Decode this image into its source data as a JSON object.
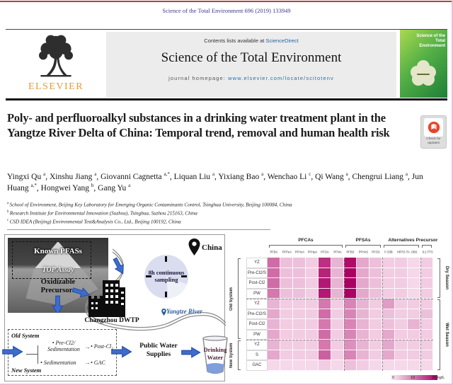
{
  "page": {
    "journal_ref": "Science of the Total Environment 696 (2019) 133949"
  },
  "header": {
    "contents_prefix": "Contents lists available at",
    "sciencedirect": "ScienceDirect",
    "journal_title": "Science of the Total Environment",
    "homepage_prefix": "journal homepage:",
    "homepage_url": "www.elsevier.com/locate/scitotenv",
    "elsevier_label": "ELSEVIER",
    "cover_title": "Science of the Total Environment",
    "check_updates_line1": "Check for",
    "check_updates_line2": "updates"
  },
  "article": {
    "title": "Poly- and perfluoroalkyl substances in a drinking water treatment plant in the Yangtze River Delta of China: Temporal trend, removal and human health risk",
    "authors": [
      {
        "name": "Yingxi Qu",
        "sup": "a"
      },
      {
        "name": "Xinshu Jiang",
        "sup": "a"
      },
      {
        "name": "Giovanni Cagnetta",
        "sup": "a,*"
      },
      {
        "name": "Liquan Liu",
        "sup": "a"
      },
      {
        "name": "Yixiang Bao",
        "sup": "a"
      },
      {
        "name": "Wenchao Li",
        "sup": "c"
      },
      {
        "name": "Qi Wang",
        "sup": "a"
      },
      {
        "name": "Chengrui Liang",
        "sup": "a"
      },
      {
        "name": "Jun Huang",
        "sup": "a,*"
      },
      {
        "name": "Hongwei Yang",
        "sup": "b"
      },
      {
        "name": "Gang Yu",
        "sup": "a"
      }
    ],
    "affiliations": [
      {
        "sup": "a",
        "text": "School of Environment, Beijing Key Laboratory for Emerging Organic Contaminants Control, Tsinghua University, Beijing 100084, China"
      },
      {
        "sup": "b",
        "text": "Research Institute for Environmental Innovation (Suzhou), Tsinghua, Suzhou 215163, China"
      },
      {
        "sup": "c",
        "text": "CSD IDEA (Beijing) Environmental Test&Analysis Co., Ltd., Beijing 100192, China"
      }
    ]
  },
  "graphical_abstract": {
    "iceberg_known": "Known PFASs",
    "iceberg_assay": "TOP Assay",
    "iceberg_oxidizable_1": "Oxidizable",
    "iceberg_oxidizable_2": "Precursors",
    "china": "China",
    "clock_line1": "8h continuous",
    "clock_line2": "sampling",
    "river": "Yangtze River",
    "plant": "Changzhou DWTP",
    "old_system": "Old System",
    "new_system": "New System",
    "step_pre_1": "• Pre-Cl2/",
    "step_pre_2": "Sedimentation",
    "step_post": "• Post-Cl₂",
    "step_sed": "• Sedimentation",
    "step_gac": "• GAC",
    "flow_arrow": "→",
    "public_water_1": "Public Water",
    "public_water_2": "Supplies",
    "drinking_1": "Drinking",
    "drinking_2": "Water"
  },
  "chart_data": {
    "type": "heatmap",
    "unit": "ng/L",
    "columns": [
      "PFBA",
      "PFPeA",
      "PFHxA",
      "PFHpA",
      "PFOA",
      "PFNA",
      "PFBS",
      "PFHxS",
      "PFOS",
      "F-53B",
      "HFPO-TA",
      "OBS",
      "6:2 FTS"
    ],
    "column_groups": [
      {
        "label": "PFCAs",
        "start": 0,
        "span": 6
      },
      {
        "label": "PFSAs",
        "start": 6,
        "span": 3
      },
      {
        "label": "Alternatives",
        "start": 9,
        "span": 3
      },
      {
        "label": "Precursor",
        "start": 12,
        "span": 1
      }
    ],
    "rows": [
      "YZ",
      "Pre-Cl2/S",
      "Post-Cl2",
      "PW",
      "YZ",
      "Pre-Cl2/S",
      "Post-Cl2",
      "PW",
      "YZ",
      "S",
      "GAC"
    ],
    "row_groups_left": [
      {
        "label": "Old System",
        "start": 0,
        "span": 8
      },
      {
        "label": "New System",
        "start": 8,
        "span": 3
      }
    ],
    "row_groups_right": [
      {
        "label": "Dry Season",
        "start": 0,
        "span": 4
      },
      {
        "label": "Wet Season",
        "start": 4,
        "span": 7
      }
    ],
    "values_ng_L": [
      [
        11,
        4,
        4,
        3,
        16,
        5,
        19,
        6,
        4,
        3,
        3,
        2,
        3
      ],
      [
        11,
        4,
        4,
        3,
        17,
        5,
        20,
        6,
        4,
        3,
        3,
        2,
        3
      ],
      [
        11,
        4,
        4,
        3,
        18,
        5,
        20,
        6,
        4,
        3,
        3,
        2,
        3
      ],
      [
        10,
        4,
        4,
        3,
        18,
        5,
        20,
        6,
        4,
        3,
        3,
        2,
        3
      ],
      [
        5,
        3,
        3,
        3,
        10,
        3,
        9,
        5,
        3,
        7,
        3,
        3,
        3
      ],
      [
        6,
        3,
        3,
        3,
        11,
        3,
        9,
        5,
        3,
        4,
        3,
        3,
        4
      ],
      [
        5,
        3,
        3,
        3,
        10,
        3,
        9,
        5,
        3,
        4,
        3,
        5,
        3
      ],
      [
        6,
        3,
        3,
        3,
        11,
        3,
        9,
        5,
        3,
        6,
        3,
        3,
        3
      ],
      [
        5,
        3,
        3,
        3,
        10,
        3,
        8,
        5,
        3,
        6,
        3,
        3,
        3
      ],
      [
        6,
        3,
        3,
        3,
        12,
        3,
        9,
        5,
        3,
        6,
        3,
        3,
        3
      ],
      [
        2,
        2,
        2,
        2,
        3,
        2,
        4,
        3,
        2,
        2,
        2,
        2,
        2
      ]
    ],
    "colorbar": {
      "min": 0,
      "mid": 10,
      "max": 20,
      "min_label": "0",
      "mid_label": "10",
      "max_label": "20 ng/L",
      "min_color": "#fdf0f8",
      "max_color": "#aa0064"
    }
  }
}
